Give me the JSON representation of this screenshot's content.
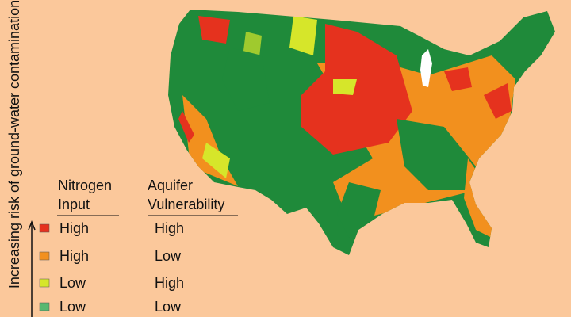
{
  "axis_label": "Increasing risk of ground-water contamination",
  "legend": {
    "headers": [
      [
        "Nitrogen",
        "Input"
      ],
      [
        "Aquifer",
        "Vulnerability"
      ]
    ],
    "rows": [
      {
        "color": "#e5321e",
        "nitrogen": "High",
        "aquifer": "High"
      },
      {
        "color": "#f2901e",
        "nitrogen": "High",
        "aquifer": "Low"
      },
      {
        "color": "#d6e62a",
        "nitrogen": "Low",
        "aquifer": "High"
      },
      {
        "color": "#58b870",
        "nitrogen": "Low",
        "aquifer": "Low"
      }
    ]
  }
}
